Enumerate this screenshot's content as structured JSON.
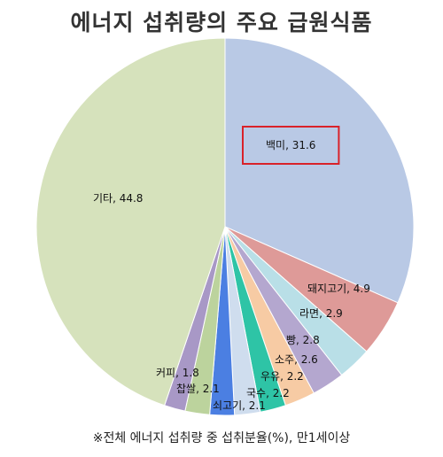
{
  "title": "에너지 섭취량의 주요 급원식품",
  "footnote": "※전체 에너지 섭취량 중 섭취분율(%), 만1세이상",
  "chart_data": {
    "type": "pie",
    "title": "에너지 섭취량의 주요 급원식품",
    "slices": [
      {
        "label": "백미",
        "value": 31.6,
        "color": "#b9c9e5"
      },
      {
        "label": "돼지고기",
        "value": 4.9,
        "color": "#de9a98"
      },
      {
        "label": "라면",
        "value": 2.9,
        "color": "#b9dfe7"
      },
      {
        "label": "빵",
        "value": 2.8,
        "color": "#b4a7cf"
      },
      {
        "label": "소주",
        "value": 2.6,
        "color": "#f7cba4"
      },
      {
        "label": "우유",
        "value": 2.2,
        "color": "#2ec4a6"
      },
      {
        "label": "국수",
        "value": 2.2,
        "color": "#cfddee"
      },
      {
        "label": "쇠고기",
        "value": 2.1,
        "color": "#4b7fe2"
      },
      {
        "label": "찹쌀",
        "value": 2.1,
        "color": "#bcd39d"
      },
      {
        "label": "커피",
        "value": 1.8,
        "color": "#a898c6"
      },
      {
        "label": "기타",
        "value": 44.8,
        "color": "#d6e2bc"
      }
    ],
    "highlight": "백미",
    "highlight_color": "#d9222a"
  }
}
